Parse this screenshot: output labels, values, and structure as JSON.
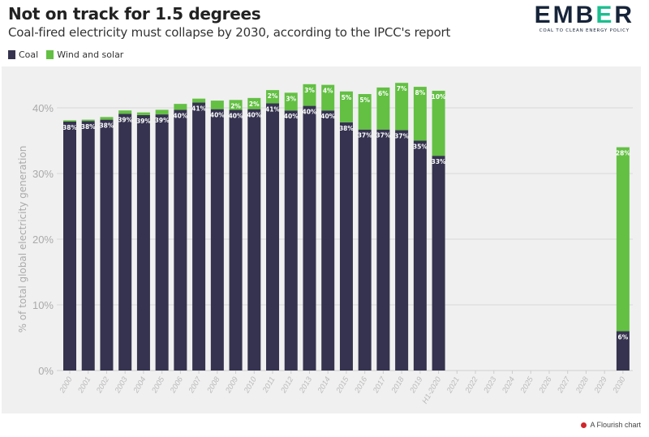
{
  "header": {
    "title": "Not on track for 1.5 degrees",
    "subtitle": "Coal-fired electricity must collapse by 2030, according to the IPCC's report",
    "logo_text": "EMBER",
    "logo_tagline": "COAL TO CLEAN ENERGY POLICY"
  },
  "footer": {
    "credit": "A Flourish chart"
  },
  "chart_data": {
    "type": "bar",
    "stacked": true,
    "title": "Not on track for 1.5 degrees",
    "subtitle": "Coal-fired electricity must collapse by 2030, according to the IPCC's report",
    "ylabel": "% of total global electricity generation",
    "xlabel": "",
    "ylim": [
      0,
      45
    ],
    "yticks": [
      0,
      10,
      20,
      30,
      40
    ],
    "ytick_labels": [
      "0%",
      "10%",
      "20%",
      "30%",
      "40%"
    ],
    "grid": true,
    "legend_position": "top-left",
    "categories": [
      "2000",
      "2001",
      "2002",
      "2003",
      "2004",
      "2005",
      "2006",
      "2007",
      "2008",
      "2009",
      "2010",
      "2011",
      "2012",
      "2013",
      "2014",
      "2015",
      "2016",
      "2017",
      "2018",
      "2019",
      "H1-2020",
      "2021",
      "2022",
      "2023",
      "2024",
      "2025",
      "2026",
      "2027",
      "2028",
      "2029",
      "2030"
    ],
    "series": [
      {
        "name": "Coal",
        "color": "#35334f",
        "values": [
          37.9,
          38.0,
          38.2,
          39.1,
          38.9,
          39.0,
          39.7,
          40.8,
          39.8,
          39.7,
          39.8,
          40.7,
          39.6,
          40.3,
          39.6,
          37.8,
          36.7,
          36.7,
          36.6,
          35.0,
          32.7,
          null,
          null,
          null,
          null,
          null,
          null,
          null,
          null,
          null,
          6.0
        ]
      },
      {
        "name": "Wind and solar",
        "color": "#63c043",
        "values": [
          0.2,
          0.2,
          0.4,
          0.5,
          0.4,
          0.7,
          0.9,
          0.6,
          1.3,
          1.5,
          1.7,
          2.0,
          2.7,
          3.3,
          3.9,
          4.7,
          5.4,
          6.4,
          7.2,
          8.2,
          9.9,
          null,
          null,
          null,
          null,
          null,
          null,
          null,
          null,
          null,
          28.0
        ]
      }
    ],
    "data_labels": {
      "Coal": [
        "38%",
        "38%",
        "38%",
        "39%",
        "39%",
        "39%",
        "40%",
        "41%",
        "40%",
        "40%",
        "40%",
        "41%",
        "40%",
        "40%",
        "40%",
        "38%",
        "37%",
        "37%",
        "37%",
        "35%",
        "33%",
        "",
        "",
        "",
        "",
        "",
        "",
        "",
        "",
        "",
        "6%"
      ],
      "Wind and solar": [
        "",
        "",
        "",
        "",
        "",
        "",
        "",
        "",
        "",
        "2%",
        "2%",
        "2%",
        "3%",
        "3%",
        "4%",
        "5%",
        "5%",
        "6%",
        "7%",
        "8%",
        "10%",
        "",
        "",
        "",
        "",
        "",
        "",
        "",
        "",
        "",
        "28%"
      ]
    }
  }
}
